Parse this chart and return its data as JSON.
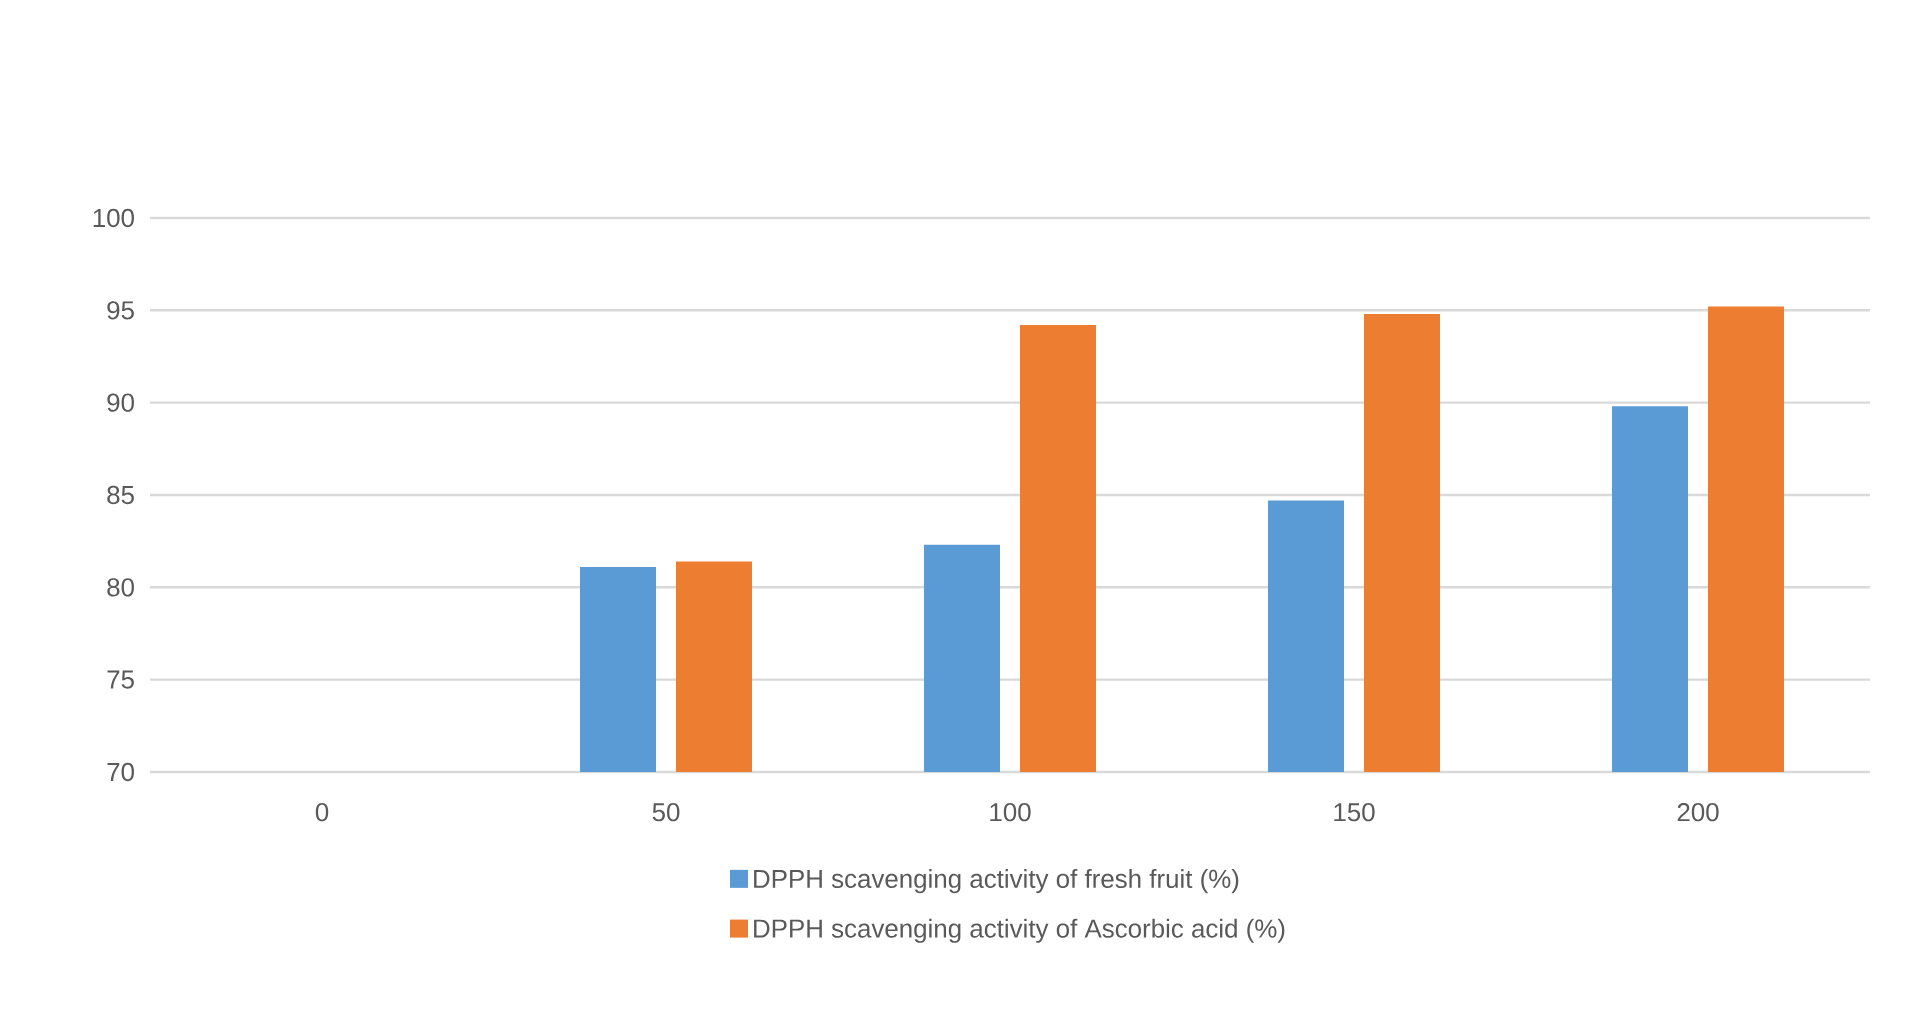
{
  "chart_data": {
    "type": "bar",
    "categories": [
      "0",
      "50",
      "100",
      "150",
      "200"
    ],
    "series": [
      {
        "name": "DPPH scavenging activity of fresh fruit   (%)",
        "color": "#5b9bd5",
        "values": [
          null,
          81.1,
          82.3,
          84.7,
          89.8
        ]
      },
      {
        "name": "DPPH scavenging activity of Ascorbic acid (%)",
        "color": "#ed7d31",
        "values": [
          null,
          81.4,
          94.2,
          94.8,
          95.2
        ]
      }
    ],
    "ylim": [
      70,
      100
    ],
    "yticks": [
      70,
      75,
      80,
      85,
      90,
      95,
      100
    ],
    "grid": "y",
    "legend": "bottom"
  }
}
